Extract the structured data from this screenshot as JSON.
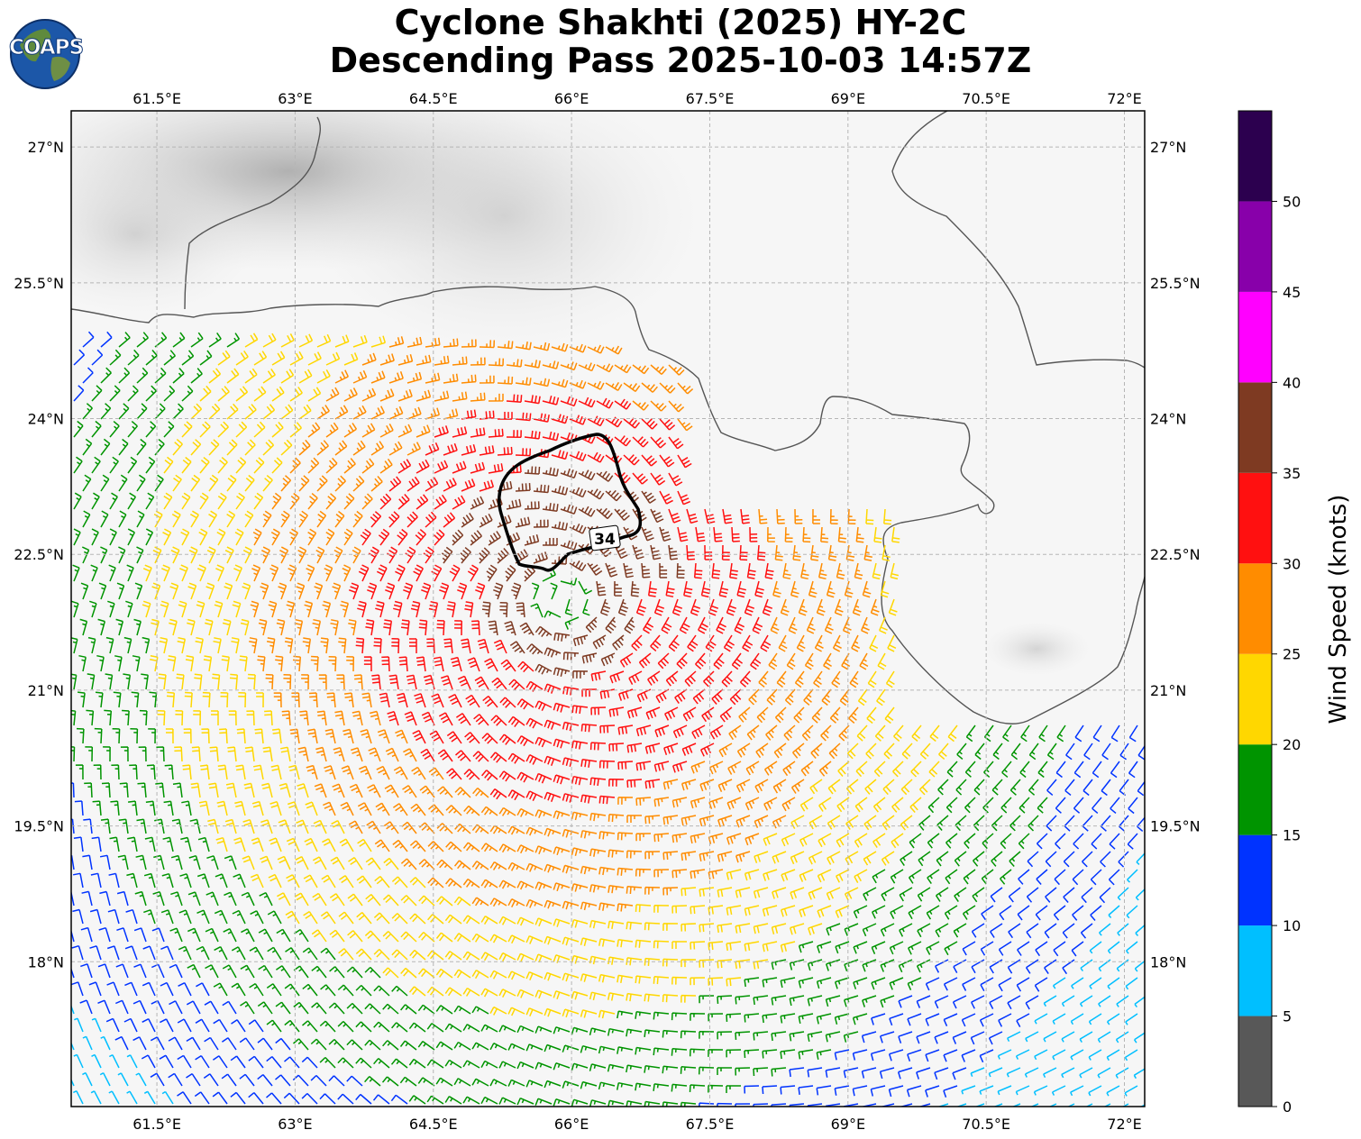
{
  "title": {
    "line1": "Cyclone Shakhti (2025) HY-2C",
    "line2": "Descending Pass 2025-10-03 14:57Z"
  },
  "logo": {
    "text": "COAPS",
    "icon": "globe-logo-icon"
  },
  "map": {
    "lon_range": [
      60.57,
      72.22
    ],
    "lat_range": [
      16.4,
      27.4
    ],
    "lon_ticks": [
      "61.5°E",
      "63°E",
      "64.5°E",
      "66°E",
      "67.5°E",
      "69°E",
      "70.5°E",
      "72°E"
    ],
    "lat_ticks": [
      "27°N",
      "25.5°N",
      "24°N",
      "22.5°N",
      "21°N",
      "19.5°N",
      "18°N"
    ],
    "gridlines": true,
    "contour_label": "34",
    "storm_center": {
      "lon": 65.9,
      "lat": 22.0
    },
    "background": "grayscale infrared cloud imagery"
  },
  "colorbar": {
    "label": "Wind Speed (knots)",
    "ticks": [
      "0",
      "5",
      "10",
      "15",
      "20",
      "25",
      "30",
      "35",
      "40",
      "45",
      "50"
    ],
    "max": 55,
    "colors": [
      "#585858",
      "#00bfff",
      "#0033ff",
      "#009400",
      "#ffd700",
      "#ff8c00",
      "#ff1010",
      "#7e3a22",
      "#ff00ff",
      "#8800aa",
      "#2c004f"
    ]
  }
}
